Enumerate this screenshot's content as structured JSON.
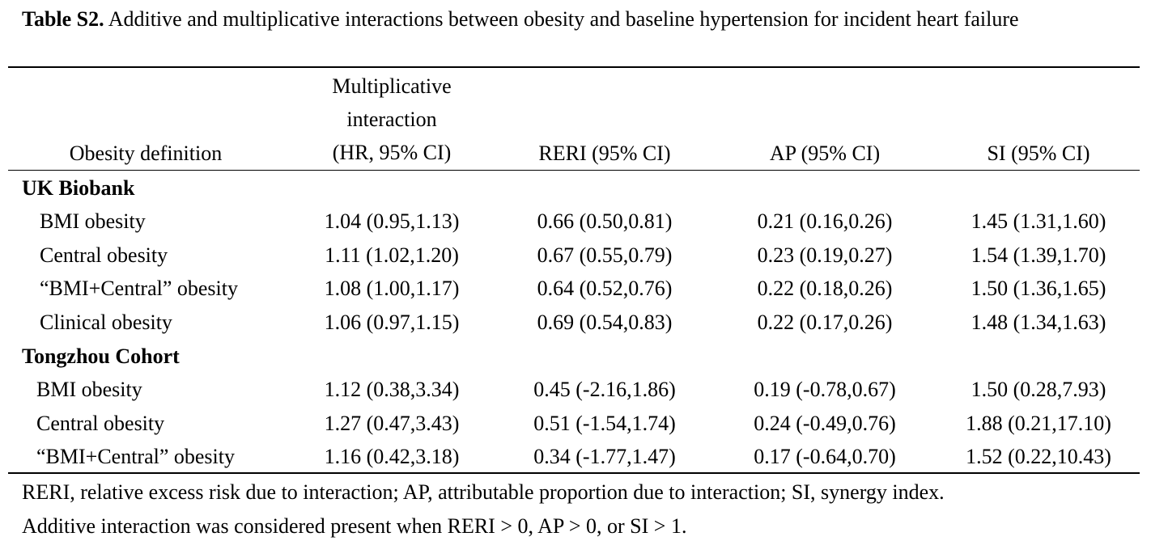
{
  "caption": {
    "label": "Table S2.",
    "text": " Additive and multiplicative interactions between obesity and baseline hypertension for incident heart failure"
  },
  "table": {
    "headers": {
      "definition": "Obesity definition",
      "mult_line1": "Multiplicative",
      "mult_line2": "interaction",
      "mult_line3": "(HR, 95% CI)",
      "reri": "RERI (95% CI)",
      "ap": "AP (95% CI)",
      "si": "SI (95% CI)"
    },
    "groups": [
      {
        "name": "UK Biobank",
        "rows": [
          {
            "definition": "BMI obesity",
            "mult": "1.04 (0.95,1.13)",
            "reri": "0.66 (0.50,0.81)",
            "ap": "0.21 (0.16,0.26)",
            "si": "1.45 (1.31,1.60)"
          },
          {
            "definition": "Central obesity",
            "mult": "1.11 (1.02,1.20)",
            "reri": "0.67 (0.55,0.79)",
            "ap": "0.23 (0.19,0.27)",
            "si": "1.54 (1.39,1.70)"
          },
          {
            "definition": "“BMI+Central” obesity",
            "mult": "1.08 (1.00,1.17)",
            "reri": "0.64 (0.52,0.76)",
            "ap": "0.22 (0.18,0.26)",
            "si": "1.50 (1.36,1.65)"
          },
          {
            "definition": "Clinical obesity",
            "mult": "1.06 (0.97,1.15)",
            "reri": "0.69 (0.54,0.83)",
            "ap": "0.22 (0.17,0.26)",
            "si": "1.48 (1.34,1.63)"
          }
        ]
      },
      {
        "name": "Tongzhou Cohort",
        "rows": [
          {
            "definition": "BMI obesity",
            "mult": "1.12 (0.38,3.34)",
            "reri": "0.45 (-2.16,1.86)",
            "ap": "0.19 (-0.78,0.67)",
            "si": "1.50 (0.28,7.93)"
          },
          {
            "definition": "Central obesity",
            "mult": "1.27 (0.47,3.43)",
            "reri": "0.51 (-1.54,1.74)",
            "ap": "0.24 (-0.49,0.76)",
            "si": "1.88 (0.21,17.10)"
          },
          {
            "definition": "“BMI+Central” obesity",
            "mult": "1.16 (0.42,3.18)",
            "reri": "0.34 (-1.77,1.47)",
            "ap": "0.17 (-0.64,0.70)",
            "si": "1.52 (0.22,10.43)"
          }
        ]
      }
    ]
  },
  "footnotes": {
    "line1": "RERI, relative excess risk due to interaction; AP, attributable proportion due to interaction; SI, synergy index.",
    "line2": "Additive interaction was considered present when RERI > 0, AP > 0, or SI > 1."
  }
}
